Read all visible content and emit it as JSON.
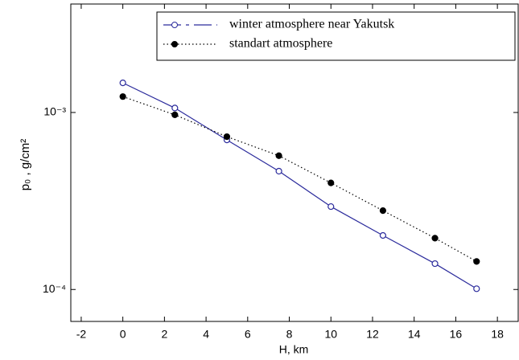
{
  "chart_data": {
    "type": "line",
    "xlabel": "H, km",
    "ylabel": "p₀ , g/cm²",
    "log_y": true,
    "legend": "top-right",
    "xlim": [
      -2.5,
      19
    ],
    "xticks": [
      -2,
      0,
      2,
      4,
      6,
      8,
      10,
      12,
      14,
      16,
      18
    ],
    "ylim": [
      6.6e-05,
      0.0041
    ],
    "yticks": [
      {
        "value": 0.001,
        "label": "10⁻³"
      },
      {
        "value": 0.0001,
        "label": "10⁻⁴"
      }
    ],
    "series": [
      {
        "name": "winter atmosphere near Yakutsk",
        "color": "#2b2b9c",
        "dash": "solid",
        "marker_fill": "open",
        "x": [
          0,
          2.5,
          5,
          7.5,
          10,
          12.5,
          15,
          17
        ],
        "values": [
          0.00147,
          0.00106,
          0.0007,
          0.000466,
          0.000294,
          0.000202,
          0.00014,
          0.000101
        ]
      },
      {
        "name": "standart atmosphere",
        "color": "#000000",
        "dash": "dotted",
        "marker_fill": "filled",
        "x": [
          0,
          2.5,
          5,
          7.5,
          10,
          12.5,
          15,
          17
        ],
        "values": [
          0.00123,
          0.00097,
          0.00073,
          0.00057,
          0.0004,
          0.000279,
          0.000195,
          0.000144
        ]
      }
    ]
  }
}
